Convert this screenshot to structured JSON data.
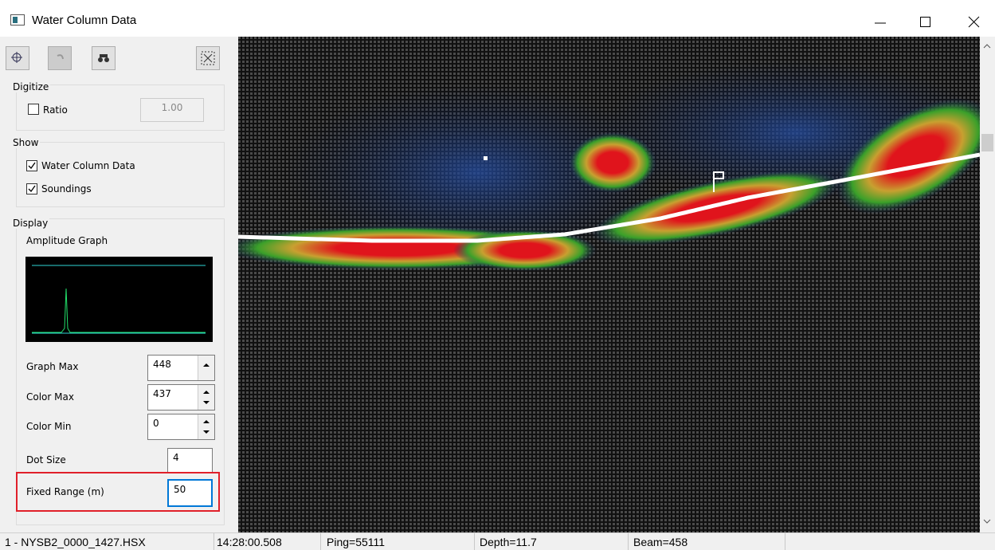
{
  "window": {
    "title": "Water Column Data"
  },
  "digitize": {
    "title": "Digitize",
    "ratio_label": "Ratio",
    "ratio_checked": false,
    "ratio_value": "1.00"
  },
  "show": {
    "title": "Show",
    "water_column_label": "Water Column Data",
    "water_column_checked": true,
    "soundings_label": "Soundings",
    "soundings_checked": true
  },
  "display": {
    "title": "Display",
    "amplitude_graph": "Amplitude Graph",
    "graph_max_label": "Graph Max",
    "graph_max": "448",
    "color_max_label": "Color Max",
    "color_max": "437",
    "color_min_label": "Color Min",
    "color_min": "0",
    "dot_size_label": "Dot Size",
    "dot_size": "4",
    "fixed_range_label": "Fixed Range (m)",
    "fixed_range": "50"
  },
  "status_bar": {
    "file": "1 - NYSB2_0000_1427.HSX",
    "time": "14:28:00.508",
    "ping": "Ping=55111",
    "depth": "Depth=11.7",
    "beam": "Beam=458"
  }
}
